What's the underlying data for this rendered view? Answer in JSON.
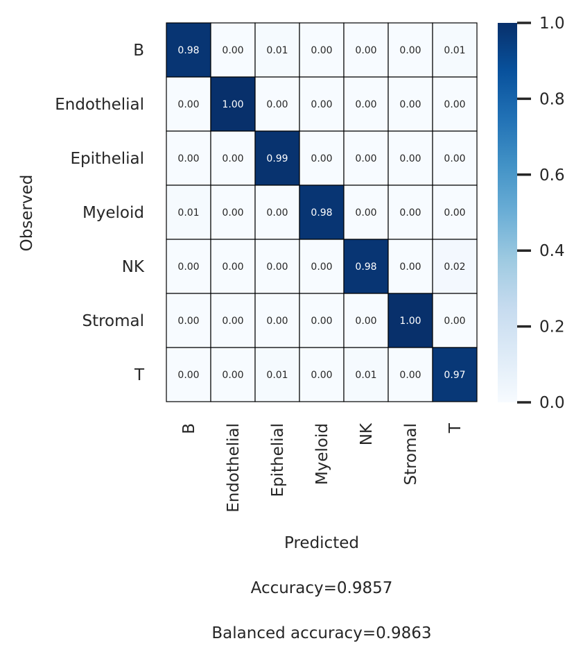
{
  "chart_data": {
    "type": "heatmap",
    "title": "",
    "xlabel": "Predicted",
    "ylabel": "Observed",
    "row_labels": [
      "B",
      "Endothelial",
      "Epithelial",
      "Myeloid",
      "NK",
      "Stromal",
      "T"
    ],
    "col_labels": [
      "B",
      "Endothelial",
      "Epithelial",
      "Myeloid",
      "NK",
      "Stromal",
      "T"
    ],
    "values": [
      [
        0.98,
        0.0,
        0.01,
        0.0,
        0.0,
        0.0,
        0.01
      ],
      [
        0.0,
        1.0,
        0.0,
        0.0,
        0.0,
        0.0,
        0.0
      ],
      [
        0.0,
        0.0,
        0.99,
        0.0,
        0.0,
        0.0,
        0.0
      ],
      [
        0.01,
        0.0,
        0.0,
        0.98,
        0.0,
        0.0,
        0.0
      ],
      [
        0.0,
        0.0,
        0.0,
        0.0,
        0.98,
        0.0,
        0.02
      ],
      [
        0.0,
        0.0,
        0.0,
        0.0,
        0.0,
        1.0,
        0.0
      ],
      [
        0.0,
        0.0,
        0.01,
        0.0,
        0.01,
        0.0,
        0.97
      ]
    ],
    "colormap": "Blues",
    "color_low": "#f7fbff",
    "color_high": "#08306b",
    "cell_border_color": "#000000",
    "value_format": "0.00",
    "colorbar": {
      "ylim": [
        0.0,
        1.0
      ],
      "ticks": [
        "0.0",
        "0.2",
        "0.4",
        "0.6",
        "0.8",
        "1.0"
      ]
    },
    "annotations": [
      "Accuracy=0.9857",
      "Balanced accuracy=0.9863"
    ]
  }
}
